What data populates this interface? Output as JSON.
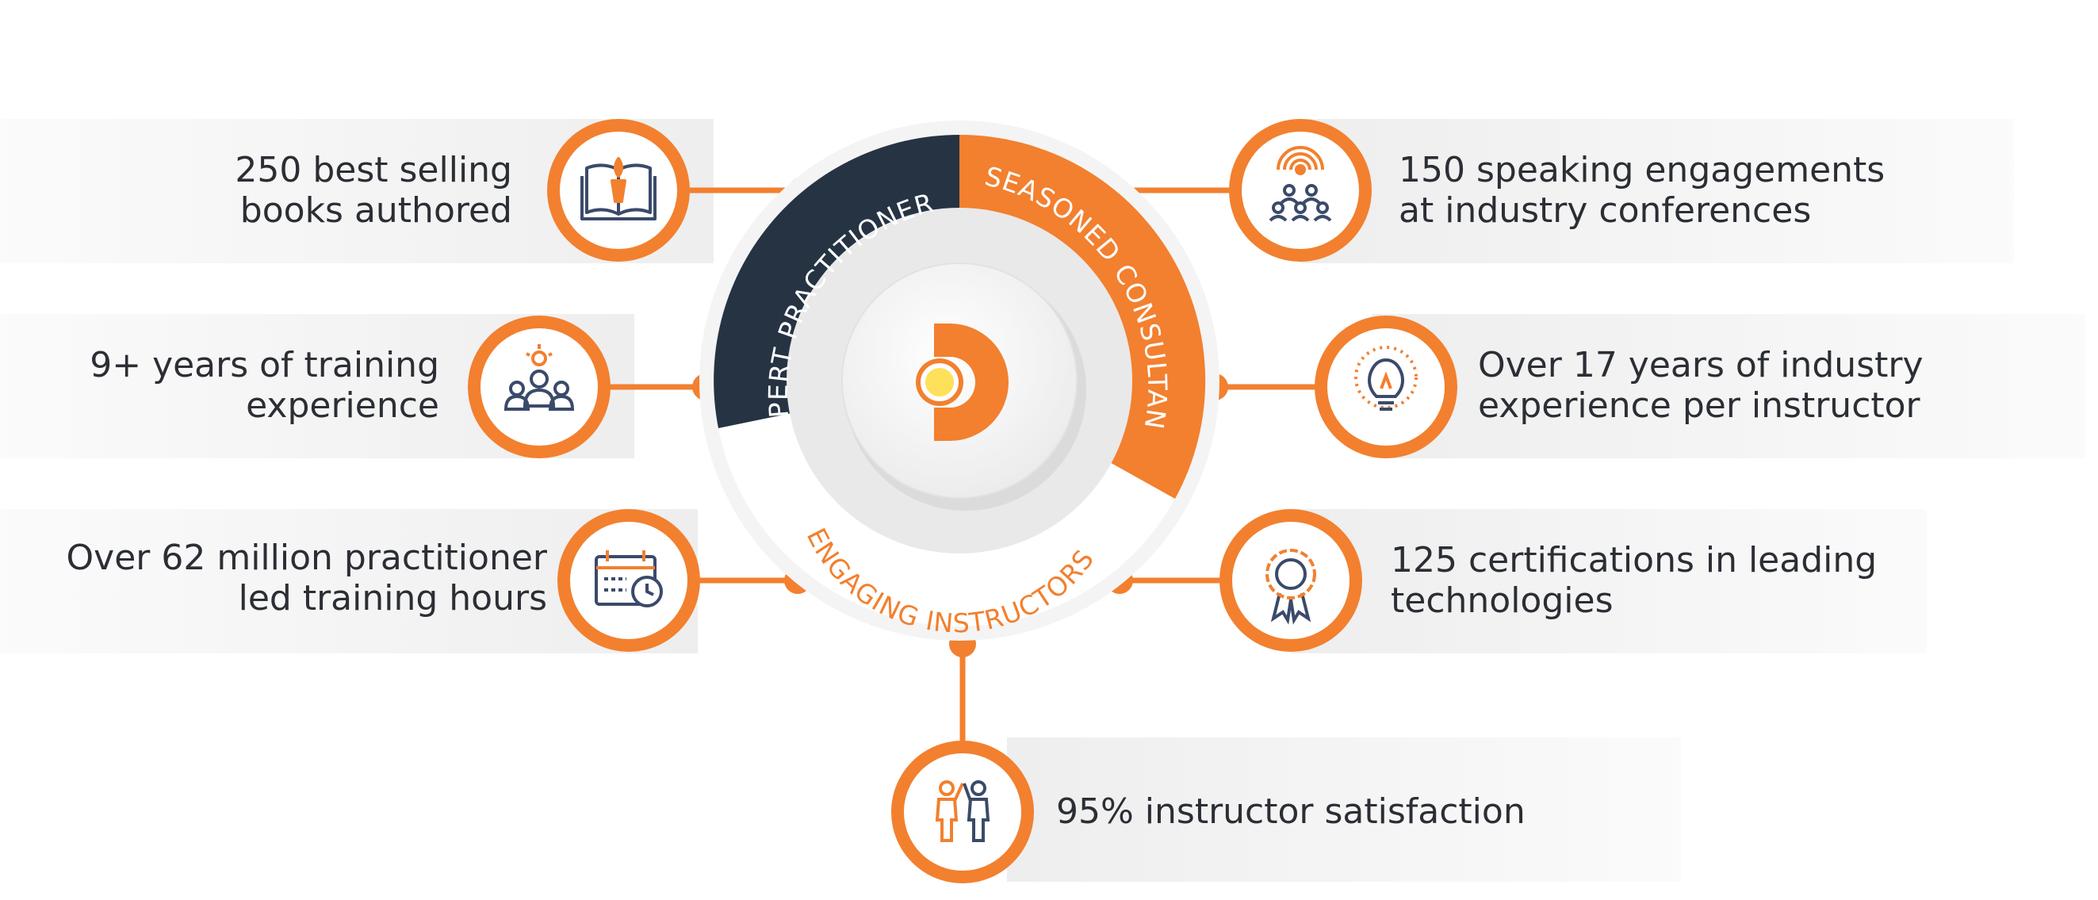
{
  "colors": {
    "accent": "#F2802F",
    "navy": "#263343",
    "text": "#2B2E34",
    "band": "#F2F2F2"
  },
  "center": {
    "logo": "D-logo-icon"
  },
  "ring": {
    "segments": [
      {
        "label": "EXPERT PRACTITIONERS",
        "color": "#263343"
      },
      {
        "label": "SEASONED CONSULTANTS",
        "color": "#F2802F"
      },
      {
        "label": "ENGAGING INSTRUCTORS",
        "color": "#F2802F"
      }
    ]
  },
  "stats": [
    {
      "lines": [
        "250 best selling",
        "books authored"
      ],
      "icon": "book-torch-icon"
    },
    {
      "lines": [
        "9+ years of training",
        "experience"
      ],
      "icon": "trainer-group-icon"
    },
    {
      "lines": [
        "Over 62 million practitioner",
        "led training hours"
      ],
      "icon": "calendar-clock-icon"
    },
    {
      "lines": [
        "150 speaking engagements",
        "at industry conferences"
      ],
      "icon": "audience-broadcast-icon"
    },
    {
      "lines": [
        "Over 17 years of industry",
        "experience per instructor"
      ],
      "icon": "lightbulb-icon"
    },
    {
      "lines": [
        "125 certifications in leading",
        "technologies"
      ],
      "icon": "award-badge-icon"
    },
    {
      "lines": [
        "95% instructor satisfaction"
      ],
      "icon": "high-five-icon"
    }
  ]
}
